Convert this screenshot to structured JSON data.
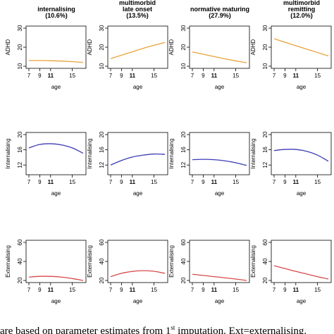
{
  "caption": {
    "prefix": "are based on parameter estimates from 1",
    "sup": "st",
    "suffix": " imputation. Ext=externalising."
  },
  "columns": [
    {
      "title_lines": [
        "internalising",
        "(10.6%)"
      ]
    },
    {
      "title_lines": [
        "multimorbid",
        "late onset",
        "(13.5%)"
      ]
    },
    {
      "title_lines": [
        "normative maturing",
        "(27.9%)"
      ]
    },
    {
      "title_lines": [
        "multimorbid",
        "remitting",
        "(12.0%)"
      ]
    }
  ],
  "colors": {
    "ADHD": "#e8a33a",
    "Internalising": "#3b3bb5",
    "Externalising": "#d84a4a"
  },
  "chart_data": [
    {
      "type": "line",
      "row": 0,
      "col": 0,
      "ylabel": "ADHD",
      "xlabel": "age",
      "xlim": [
        7,
        17
      ],
      "ylim": [
        10,
        30
      ],
      "yticks": [
        10,
        20,
        30
      ],
      "xticks": [
        7,
        9,
        11,
        15
      ],
      "series": [
        {
          "x": [
            7,
            9,
            11,
            13,
            15,
            17
          ],
          "y": [
            13,
            13,
            12.9,
            12.7,
            12.4,
            12
          ]
        }
      ]
    },
    {
      "type": "line",
      "row": 0,
      "col": 1,
      "ylabel": "ADHD",
      "xlabel": "age",
      "xlim": [
        7,
        17
      ],
      "ylim": [
        10,
        30
      ],
      "yticks": [
        10,
        20,
        30
      ],
      "xticks": [
        7,
        9,
        11,
        15
      ],
      "series": [
        {
          "x": [
            7,
            9,
            11,
            13,
            15,
            17
          ],
          "y": [
            14,
            15.8,
            17.6,
            19.4,
            21,
            22.5
          ]
        }
      ]
    },
    {
      "type": "line",
      "row": 0,
      "col": 2,
      "ylabel": "ADHD",
      "xlabel": "age",
      "xlim": [
        7,
        17
      ],
      "ylim": [
        10,
        30
      ],
      "yticks": [
        10,
        20,
        30
      ],
      "xticks": [
        7,
        9,
        11,
        15
      ],
      "series": [
        {
          "x": [
            7,
            9,
            11,
            13,
            15,
            17
          ],
          "y": [
            17.5,
            16.3,
            15.1,
            13.9,
            12.8,
            11.8
          ]
        }
      ]
    },
    {
      "type": "line",
      "row": 0,
      "col": 3,
      "ylabel": "ADHD",
      "xlabel": "age",
      "xlim": [
        7,
        17
      ],
      "ylim": [
        10,
        30
      ],
      "yticks": [
        10,
        20,
        30
      ],
      "xticks": [
        7,
        9,
        11,
        15
      ],
      "series": [
        {
          "x": [
            7,
            9,
            11,
            13,
            15,
            17
          ],
          "y": [
            24.5,
            22.6,
            20.8,
            19,
            17.2,
            15.4
          ]
        }
      ]
    },
    {
      "type": "line",
      "row": 1,
      "col": 0,
      "ylabel": "Internalising",
      "xlabel": "age",
      "xlim": [
        7,
        17
      ],
      "ylim": [
        10,
        20
      ],
      "yticks": [
        12,
        16,
        20
      ],
      "xticks": [
        7,
        9,
        11,
        15
      ],
      "series": [
        {
          "x": [
            7,
            9,
            11,
            13,
            15,
            17
          ],
          "y": [
            16.5,
            17.4,
            17.6,
            17.3,
            16.5,
            15.1
          ]
        }
      ]
    },
    {
      "type": "line",
      "row": 1,
      "col": 1,
      "ylabel": "Internalising",
      "xlabel": "age",
      "xlim": [
        7,
        17
      ],
      "ylim": [
        10,
        20
      ],
      "yticks": [
        12,
        16,
        20
      ],
      "xticks": [
        7,
        9,
        11,
        15
      ],
      "series": [
        {
          "x": [
            7,
            9,
            11,
            13,
            15,
            17
          ],
          "y": [
            12,
            13.2,
            14.1,
            14.6,
            14.9,
            14.8
          ]
        }
      ]
    },
    {
      "type": "line",
      "row": 1,
      "col": 2,
      "ylabel": "Internalising",
      "xlabel": "age",
      "xlim": [
        7,
        17
      ],
      "ylim": [
        10,
        20
      ],
      "yticks": [
        12,
        16,
        20
      ],
      "xticks": [
        7,
        9,
        11,
        15
      ],
      "series": [
        {
          "x": [
            7,
            9,
            11,
            13,
            15,
            17
          ],
          "y": [
            13.4,
            13.5,
            13.4,
            13.1,
            12.6,
            11.9
          ]
        }
      ]
    },
    {
      "type": "line",
      "row": 1,
      "col": 3,
      "ylabel": "Internalising",
      "xlabel": "age",
      "xlim": [
        7,
        17
      ],
      "ylim": [
        10,
        20
      ],
      "yticks": [
        12,
        16,
        20
      ],
      "xticks": [
        7,
        9,
        11,
        15
      ],
      "series": [
        {
          "x": [
            7,
            9,
            11,
            13,
            15,
            17
          ],
          "y": [
            15.8,
            16.1,
            16.1,
            15.6,
            14.6,
            13
          ]
        }
      ]
    },
    {
      "type": "line",
      "row": 2,
      "col": 0,
      "ylabel": "Externalising",
      "xlabel": "age",
      "xlim": [
        7,
        17
      ],
      "ylim": [
        20,
        60
      ],
      "yticks": [
        20,
        40,
        60
      ],
      "xticks": [
        7,
        9,
        11,
        15
      ],
      "series": [
        {
          "x": [
            7,
            9,
            11,
            13,
            15,
            17
          ],
          "y": [
            23.5,
            24.3,
            24.3,
            23.5,
            22,
            20
          ]
        }
      ]
    },
    {
      "type": "line",
      "row": 2,
      "col": 1,
      "ylabel": "Externalising",
      "xlabel": "age",
      "xlim": [
        7,
        17
      ],
      "ylim": [
        20,
        60
      ],
      "yticks": [
        20,
        40,
        60
      ],
      "xticks": [
        7,
        9,
        11,
        15
      ],
      "series": [
        {
          "x": [
            7,
            9,
            11,
            13,
            15,
            17
          ],
          "y": [
            24,
            27.5,
            29.5,
            30.3,
            29.6,
            27.5
          ]
        }
      ]
    },
    {
      "type": "line",
      "row": 2,
      "col": 2,
      "ylabel": "Externalising",
      "xlabel": "age",
      "xlim": [
        7,
        17
      ],
      "ylim": [
        20,
        60
      ],
      "yticks": [
        20,
        40,
        60
      ],
      "xticks": [
        7,
        9,
        11,
        15
      ],
      "series": [
        {
          "x": [
            7,
            9,
            11,
            13,
            15,
            17
          ],
          "y": [
            26.5,
            25.3,
            24,
            22.8,
            21.5,
            20
          ]
        }
      ]
    },
    {
      "type": "line",
      "row": 2,
      "col": 3,
      "ylabel": "Externalising",
      "xlabel": "age",
      "xlim": [
        7,
        17
      ],
      "ylim": [
        20,
        60
      ],
      "yticks": [
        20,
        40,
        60
      ],
      "xticks": [
        7,
        9,
        11,
        15
      ],
      "series": [
        {
          "x": [
            7,
            9,
            11,
            13,
            15,
            17
          ],
          "y": [
            35.5,
            32.5,
            29.5,
            26.8,
            24,
            21.5
          ]
        }
      ]
    }
  ]
}
